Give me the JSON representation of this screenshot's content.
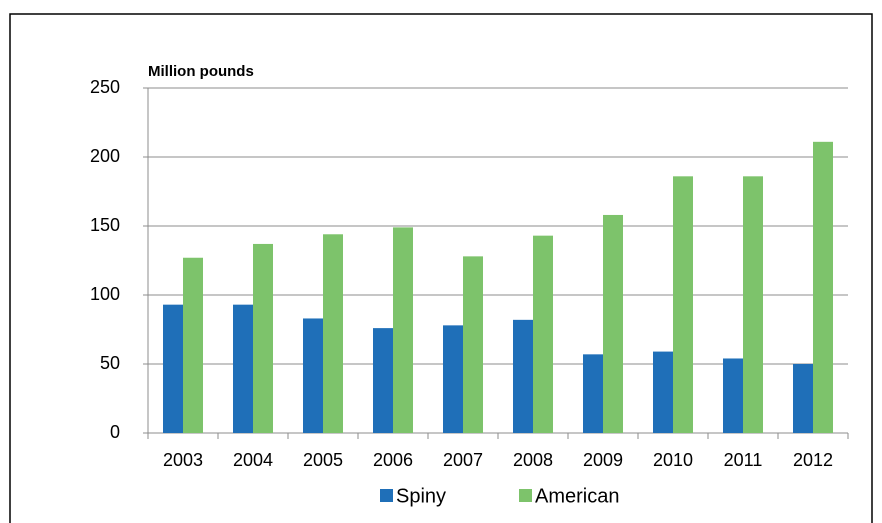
{
  "chart_data": {
    "type": "bar",
    "ylabel": "Million pounds",
    "categories": [
      "2003",
      "2004",
      "2005",
      "2006",
      "2007",
      "2008",
      "2009",
      "2010",
      "2011",
      "2012"
    ],
    "series": [
      {
        "name": "Spiny",
        "color": "#1f6fb8",
        "values": [
          93,
          93,
          83,
          76,
          78,
          82,
          57,
          59,
          54,
          50
        ]
      },
      {
        "name": "American",
        "color": "#7dc36b",
        "values": [
          127,
          137,
          144,
          149,
          128,
          143,
          158,
          186,
          186,
          211
        ]
      }
    ],
    "ylim": [
      0,
      250
    ],
    "yticks": [
      0,
      50,
      100,
      150,
      200,
      250
    ],
    "grid": true
  }
}
